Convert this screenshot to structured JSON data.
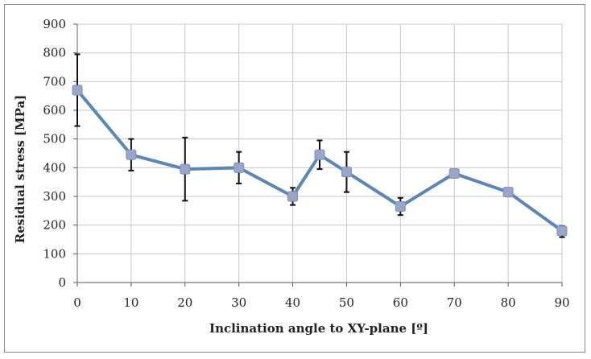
{
  "chart_data": {
    "type": "line",
    "title": "",
    "xlabel": "Inclination angle to XY-plane [º]",
    "ylabel": "Residual stress [MPa]",
    "xlim": [
      0,
      90
    ],
    "ylim": [
      0,
      900
    ],
    "x_ticks": [
      0,
      10,
      20,
      30,
      40,
      50,
      60,
      70,
      80,
      90
    ],
    "y_ticks": [
      0,
      100,
      200,
      300,
      400,
      500,
      600,
      700,
      800,
      900
    ],
    "grid": true,
    "legend": "none",
    "series": [
      {
        "name": "Residual stress",
        "color": "#5b86b5",
        "marker_color": "#9aa6c8",
        "x": [
          0,
          10,
          20,
          30,
          40,
          45,
          50,
          60,
          70,
          80,
          90
        ],
        "y": [
          670,
          445,
          395,
          400,
          300,
          445,
          385,
          265,
          380,
          315,
          180
        ],
        "error_low": [
          545,
          390,
          285,
          345,
          270,
          395,
          315,
          235,
          370,
          305,
          158
        ],
        "error_high": [
          795,
          500,
          505,
          455,
          330,
          495,
          455,
          295,
          390,
          325,
          197
        ]
      }
    ]
  }
}
